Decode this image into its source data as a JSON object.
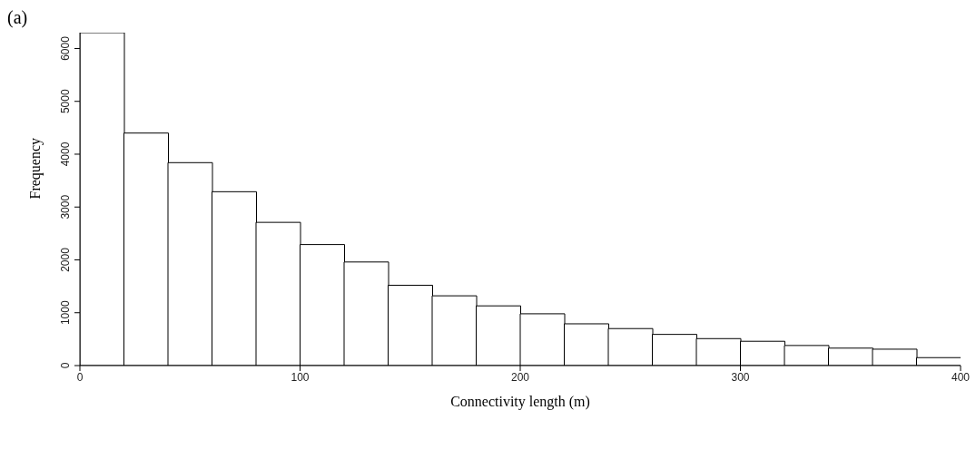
{
  "chart_data": {
    "type": "histogram",
    "title": "(a)",
    "xlabel": "Connectivity length (m)",
    "ylabel": "Frequency",
    "bins": [
      0,
      20,
      40,
      60,
      80,
      100,
      120,
      140,
      160,
      180,
      200,
      220,
      240,
      260,
      280,
      300,
      320,
      340,
      360,
      380,
      400
    ],
    "values": [
      6300,
      4400,
      3840,
      3290,
      2710,
      2290,
      1960,
      1520,
      1320,
      1130,
      980,
      790,
      700,
      590,
      510,
      460,
      380,
      330,
      310,
      150
    ],
    "color": "#ffffff",
    "xlim": [
      0,
      400
    ],
    "xticks": [
      0,
      100,
      200,
      300,
      400
    ],
    "ylim": [
      0,
      6300
    ],
    "yticks": [
      0,
      1000,
      2000,
      3000,
      4000,
      5000,
      6000
    ],
    "grid": false
  }
}
